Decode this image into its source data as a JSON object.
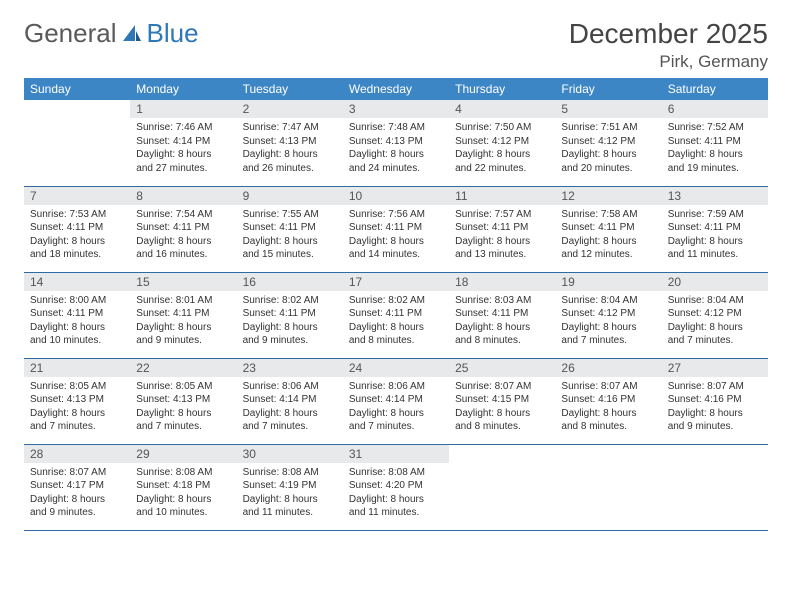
{
  "logo": {
    "word1": "General",
    "word2": "Blue"
  },
  "title": "December 2025",
  "location": "Pirk, Germany",
  "colors": {
    "header_bg": "#3d86c6",
    "header_text": "#ffffff",
    "daynum_bg": "#e8e9ea",
    "row_divider": "#2f6aa5",
    "logo_gray": "#5a5a5a",
    "logo_blue": "#2f78b7"
  },
  "weekdays": [
    "Sunday",
    "Monday",
    "Tuesday",
    "Wednesday",
    "Thursday",
    "Friday",
    "Saturday"
  ],
  "weeks": [
    [
      null,
      {
        "n": "1",
        "sr": "7:46 AM",
        "ss": "4:14 PM",
        "dl": "8 hours and 27 minutes."
      },
      {
        "n": "2",
        "sr": "7:47 AM",
        "ss": "4:13 PM",
        "dl": "8 hours and 26 minutes."
      },
      {
        "n": "3",
        "sr": "7:48 AM",
        "ss": "4:13 PM",
        "dl": "8 hours and 24 minutes."
      },
      {
        "n": "4",
        "sr": "7:50 AM",
        "ss": "4:12 PM",
        "dl": "8 hours and 22 minutes."
      },
      {
        "n": "5",
        "sr": "7:51 AM",
        "ss": "4:12 PM",
        "dl": "8 hours and 20 minutes."
      },
      {
        "n": "6",
        "sr": "7:52 AM",
        "ss": "4:11 PM",
        "dl": "8 hours and 19 minutes."
      }
    ],
    [
      {
        "n": "7",
        "sr": "7:53 AM",
        "ss": "4:11 PM",
        "dl": "8 hours and 18 minutes."
      },
      {
        "n": "8",
        "sr": "7:54 AM",
        "ss": "4:11 PM",
        "dl": "8 hours and 16 minutes."
      },
      {
        "n": "9",
        "sr": "7:55 AM",
        "ss": "4:11 PM",
        "dl": "8 hours and 15 minutes."
      },
      {
        "n": "10",
        "sr": "7:56 AM",
        "ss": "4:11 PM",
        "dl": "8 hours and 14 minutes."
      },
      {
        "n": "11",
        "sr": "7:57 AM",
        "ss": "4:11 PM",
        "dl": "8 hours and 13 minutes."
      },
      {
        "n": "12",
        "sr": "7:58 AM",
        "ss": "4:11 PM",
        "dl": "8 hours and 12 minutes."
      },
      {
        "n": "13",
        "sr": "7:59 AM",
        "ss": "4:11 PM",
        "dl": "8 hours and 11 minutes."
      }
    ],
    [
      {
        "n": "14",
        "sr": "8:00 AM",
        "ss": "4:11 PM",
        "dl": "8 hours and 10 minutes."
      },
      {
        "n": "15",
        "sr": "8:01 AM",
        "ss": "4:11 PM",
        "dl": "8 hours and 9 minutes."
      },
      {
        "n": "16",
        "sr": "8:02 AM",
        "ss": "4:11 PM",
        "dl": "8 hours and 9 minutes."
      },
      {
        "n": "17",
        "sr": "8:02 AM",
        "ss": "4:11 PM",
        "dl": "8 hours and 8 minutes."
      },
      {
        "n": "18",
        "sr": "8:03 AM",
        "ss": "4:11 PM",
        "dl": "8 hours and 8 minutes."
      },
      {
        "n": "19",
        "sr": "8:04 AM",
        "ss": "4:12 PM",
        "dl": "8 hours and 7 minutes."
      },
      {
        "n": "20",
        "sr": "8:04 AM",
        "ss": "4:12 PM",
        "dl": "8 hours and 7 minutes."
      }
    ],
    [
      {
        "n": "21",
        "sr": "8:05 AM",
        "ss": "4:13 PM",
        "dl": "8 hours and 7 minutes."
      },
      {
        "n": "22",
        "sr": "8:05 AM",
        "ss": "4:13 PM",
        "dl": "8 hours and 7 minutes."
      },
      {
        "n": "23",
        "sr": "8:06 AM",
        "ss": "4:14 PM",
        "dl": "8 hours and 7 minutes."
      },
      {
        "n": "24",
        "sr": "8:06 AM",
        "ss": "4:14 PM",
        "dl": "8 hours and 7 minutes."
      },
      {
        "n": "25",
        "sr": "8:07 AM",
        "ss": "4:15 PM",
        "dl": "8 hours and 8 minutes."
      },
      {
        "n": "26",
        "sr": "8:07 AM",
        "ss": "4:16 PM",
        "dl": "8 hours and 8 minutes."
      },
      {
        "n": "27",
        "sr": "8:07 AM",
        "ss": "4:16 PM",
        "dl": "8 hours and 9 minutes."
      }
    ],
    [
      {
        "n": "28",
        "sr": "8:07 AM",
        "ss": "4:17 PM",
        "dl": "8 hours and 9 minutes."
      },
      {
        "n": "29",
        "sr": "8:08 AM",
        "ss": "4:18 PM",
        "dl": "8 hours and 10 minutes."
      },
      {
        "n": "30",
        "sr": "8:08 AM",
        "ss": "4:19 PM",
        "dl": "8 hours and 11 minutes."
      },
      {
        "n": "31",
        "sr": "8:08 AM",
        "ss": "4:20 PM",
        "dl": "8 hours and 11 minutes."
      },
      null,
      null,
      null
    ]
  ],
  "labels": {
    "sunrise": "Sunrise: ",
    "sunset": "Sunset: ",
    "daylight": "Daylight: "
  }
}
